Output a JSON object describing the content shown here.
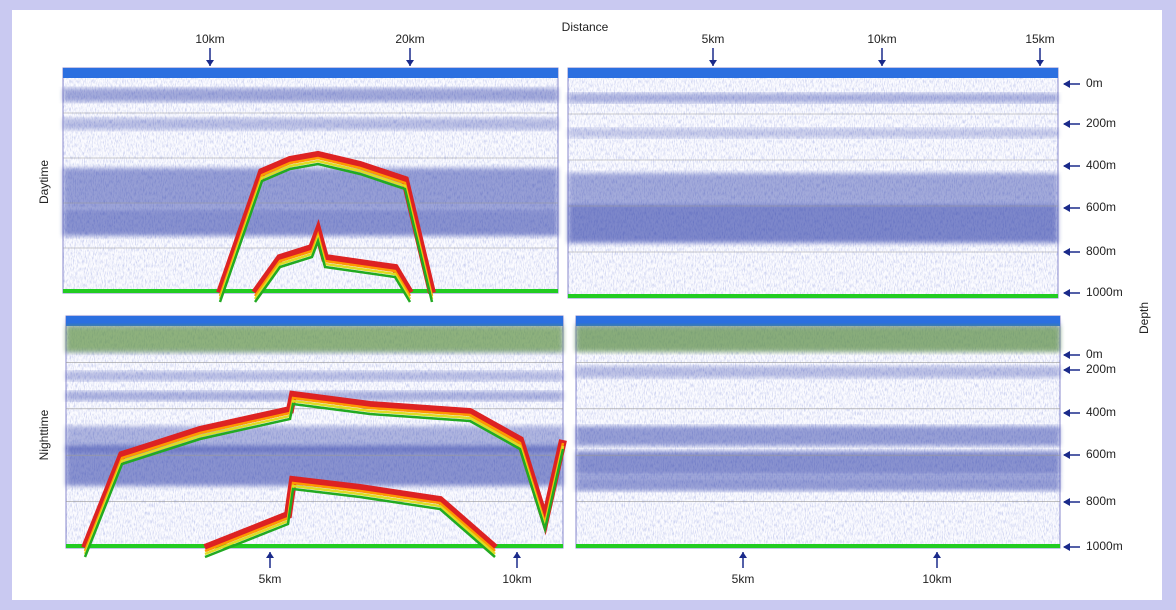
{
  "title": "Distance",
  "axis_label": "Depth",
  "panels": [
    {
      "row_label": "Daytime",
      "left_distance_labels": [
        "10km",
        "20km"
      ],
      "right_distance_labels": [
        "5km",
        "10km",
        "15km"
      ],
      "depth_labels": [
        "0m",
        "200m",
        "400m",
        "600m",
        "800m",
        "1000m"
      ]
    },
    {
      "row_label": "Nighttime",
      "left_distance_labels": [
        "5km",
        "10km"
      ],
      "right_distance_labels": [
        "5km",
        "10km"
      ],
      "depth_labels": [
        "0m",
        "200m",
        "400m",
        "600m",
        "800m",
        "1000m"
      ]
    }
  ]
}
